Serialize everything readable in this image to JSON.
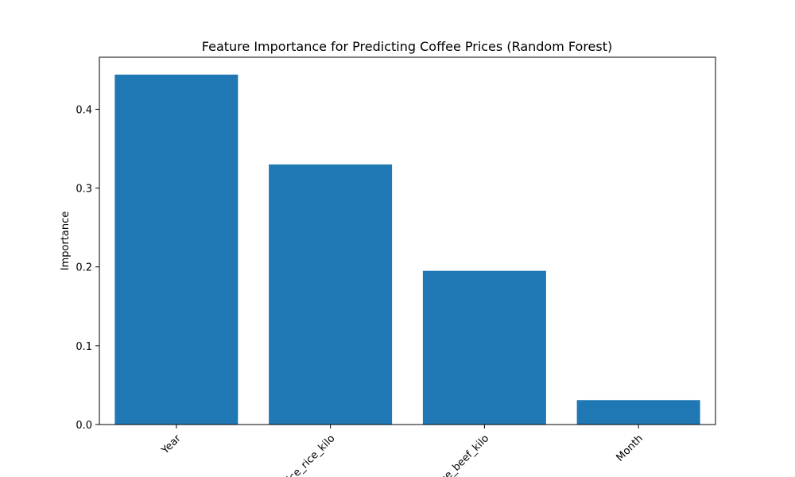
{
  "chart_data": {
    "type": "bar",
    "title": "Feature Importance for Predicting Coffee Prices (Random Forest)",
    "xlabel": "",
    "ylabel": "Importance",
    "categories": [
      "Year",
      "price_rice_kilo",
      "price_beef_kilo",
      "Month"
    ],
    "values": [
      0.444,
      0.33,
      0.195,
      0.031
    ],
    "ylim": [
      0,
      0.466
    ],
    "yticks": [
      0.0,
      0.1,
      0.2,
      0.3,
      0.4
    ],
    "ytick_labels": [
      "0.0",
      "0.1",
      "0.2",
      "0.3",
      "0.4"
    ],
    "xtick_rotation": 45,
    "bar_color": "#1f77b4",
    "grid": false
  }
}
